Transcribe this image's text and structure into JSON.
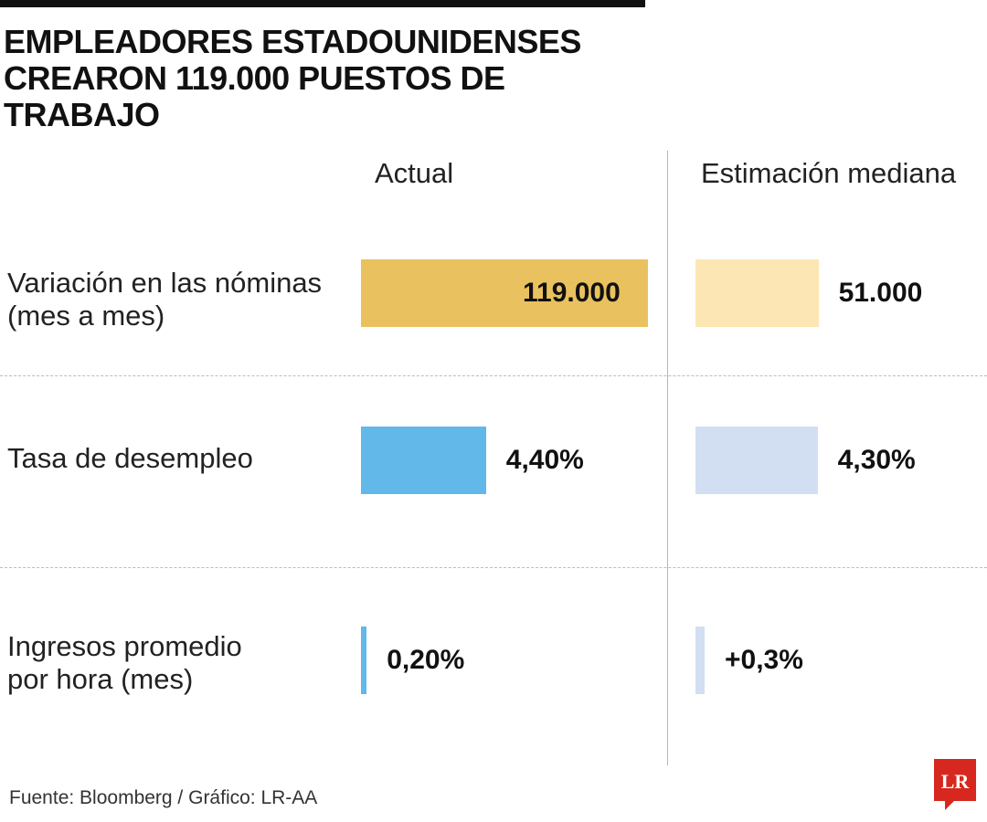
{
  "title": "EMPLEADORES ESTADOUNIDENSES\nCREARON 119.000 PUESTOS DE TRABAJO",
  "source": "Fuente: Bloomberg / Gráfico: LR-AA",
  "logo_text": "LR",
  "chart_data": {
    "type": "bar",
    "title": "EMPLEADORES ESTADOUNIDENSES CREARON 119.000 PUESTOS DE TRABAJO",
    "columns": [
      "Actual",
      "Estimación mediana"
    ],
    "rows": [
      {
        "label": "Variación en las nóminas\n(mes a mes)",
        "actual": {
          "value": 119000,
          "label": "119.000",
          "color": "#E9C15E"
        },
        "estimate": {
          "value": 51000,
          "label": "51.000",
          "color": "#FCE6B3"
        },
        "max": 119000
      },
      {
        "label": "Tasa de desempleo",
        "actual": {
          "value": 4.4,
          "label": "4,40%",
          "color": "#62B8E8"
        },
        "estimate": {
          "value": 4.3,
          "label": "4,30%",
          "color": "#D2DFF2"
        },
        "max": 10.1
      },
      {
        "label": "Ingresos promedio\npor hora (mes)",
        "actual": {
          "value": 0.2,
          "label": "0,20%",
          "color": "#62B8E8"
        },
        "estimate": {
          "value": 0.3,
          "label": "+0,3%",
          "color": "#D2DFF2"
        },
        "max": 10.1
      }
    ],
    "legend": "none",
    "grid": false
  }
}
